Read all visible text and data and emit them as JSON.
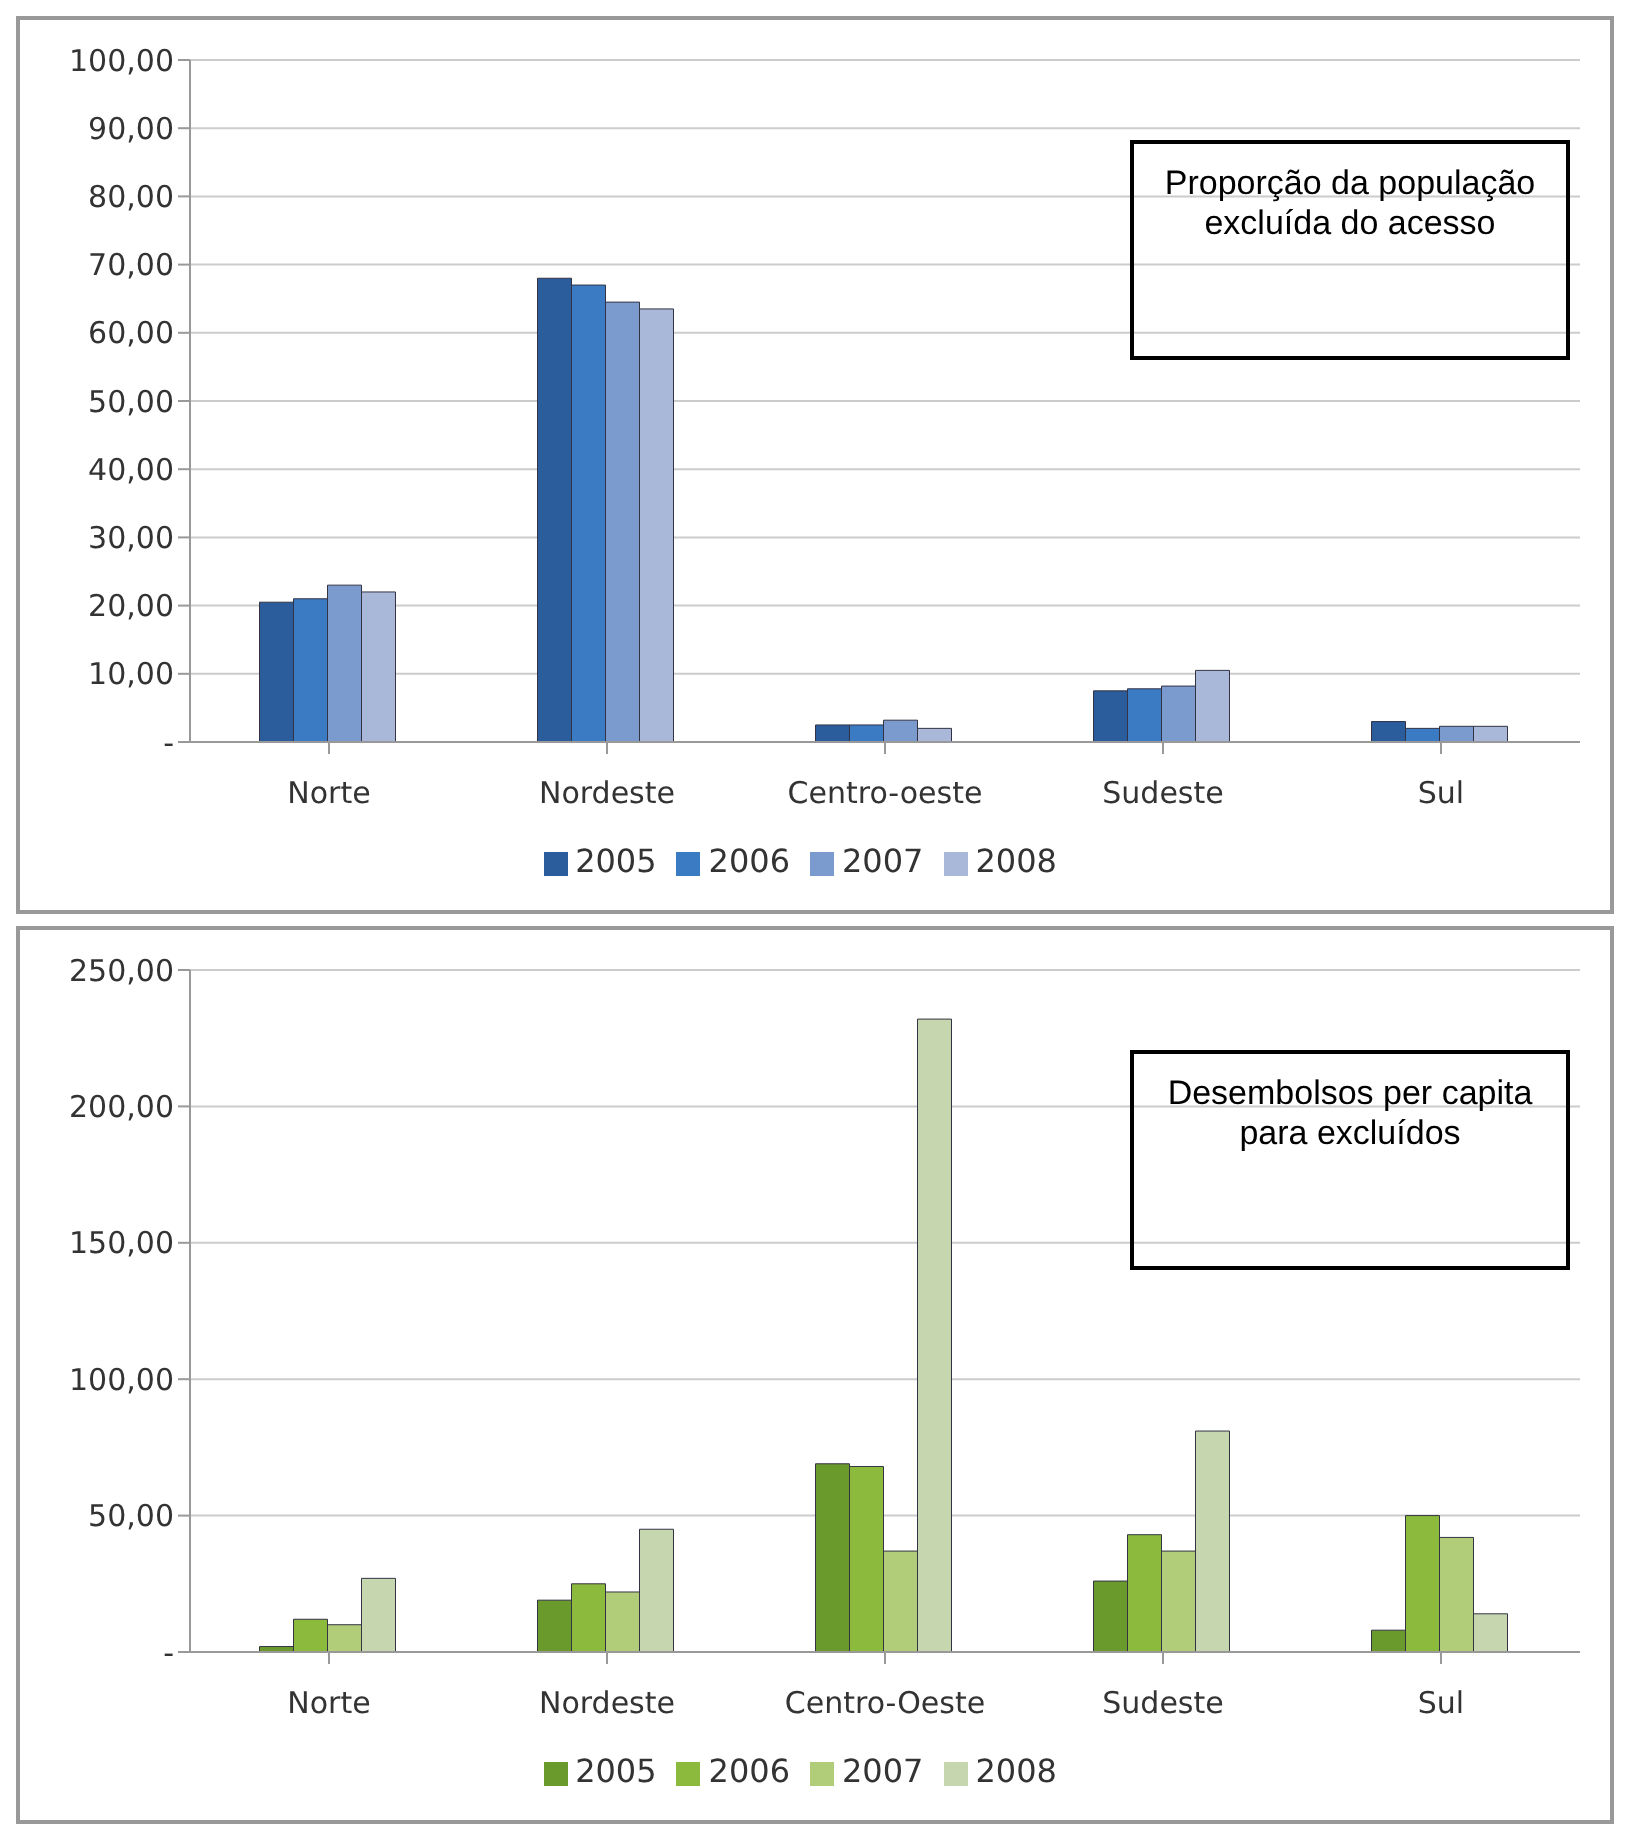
{
  "chart_data": [
    {
      "type": "bar",
      "categories": [
        "Norte",
        "Nordeste",
        "Centro-oeste",
        "Sudeste",
        "Sul"
      ],
      "series": [
        {
          "name": "2005",
          "color": "#2b5c9c",
          "values": [
            20.5,
            68,
            2.5,
            7.5,
            3
          ]
        },
        {
          "name": "2006",
          "color": "#3b7bc4",
          "values": [
            21,
            67,
            2.5,
            7.8,
            2
          ]
        },
        {
          "name": "2007",
          "color": "#7b9bce",
          "values": [
            23,
            64.5,
            3.2,
            8.2,
            2.3
          ]
        },
        {
          "name": "2008",
          "color": "#a9b8d8",
          "values": [
            22,
            63.5,
            2,
            10.5,
            2.3
          ]
        }
      ],
      "ylim": [
        0,
        100
      ],
      "yticks": [
        {
          "value": 0,
          "label": "-"
        },
        {
          "value": 10,
          "label": "10,00"
        },
        {
          "value": 20,
          "label": "20,00"
        },
        {
          "value": 30,
          "label": "30,00"
        },
        {
          "value": 40,
          "label": "40,00"
        },
        {
          "value": 50,
          "label": "50,00"
        },
        {
          "value": 60,
          "label": "60,00"
        },
        {
          "value": 70,
          "label": "70,00"
        },
        {
          "value": 80,
          "label": "80,00"
        },
        {
          "value": 90,
          "label": "90,00"
        },
        {
          "value": 100,
          "label": "100,00"
        }
      ],
      "grid": "y",
      "legend": "bottom",
      "annotations": [
        "Proporção da população excluída do acesso"
      ]
    },
    {
      "type": "bar",
      "categories": [
        "Norte",
        "Nordeste",
        "Centro-Oeste",
        "Sudeste",
        "Sul"
      ],
      "series": [
        {
          "name": "2005",
          "color": "#6b9a2c",
          "values": [
            2,
            19,
            69,
            26,
            8
          ]
        },
        {
          "name": "2006",
          "color": "#8cba3c",
          "values": [
            12,
            25,
            68,
            43,
            50
          ]
        },
        {
          "name": "2007",
          "color": "#b2cd7a",
          "values": [
            10,
            22,
            37,
            37,
            42
          ]
        },
        {
          "name": "2008",
          "color": "#c6d6ae",
          "values": [
            27,
            45,
            232,
            81,
            14
          ]
        }
      ],
      "ylim": [
        0,
        250
      ],
      "yticks": [
        {
          "value": 0,
          "label": "-"
        },
        {
          "value": 50,
          "label": "50,00"
        },
        {
          "value": 100,
          "label": "100,00"
        },
        {
          "value": 150,
          "label": "150,00"
        },
        {
          "value": 200,
          "label": "200,00"
        },
        {
          "value": 250,
          "label": "250,00"
        }
      ],
      "grid": "y",
      "legend": "bottom",
      "annotations": [
        "Desembolsos per capita para excluídos"
      ]
    }
  ]
}
